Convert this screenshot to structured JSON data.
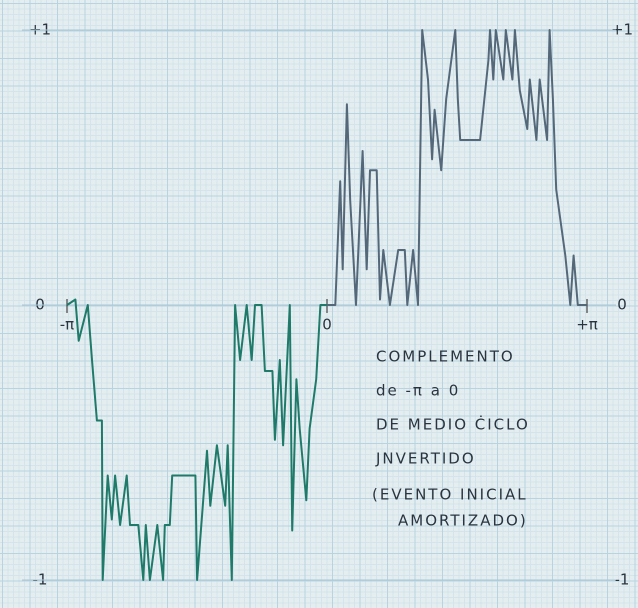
{
  "chart_data": {
    "type": "line",
    "xlim": [
      -3.1416,
      3.1416
    ],
    "ylim": [
      -1,
      1
    ],
    "xticks": [
      {
        "value": -3.1416,
        "label": "-π"
      },
      0,
      {
        "value": 3.1416,
        "label": "+π"
      }
    ],
    "yticks": [
      {
        "value": 1,
        "label": "+1"
      },
      0,
      -1
    ],
    "grid": true,
    "annotation": [
      "COMPLEMENTO",
      "de -π a 0",
      "DE MEDIO ĊICLO",
      "JNVERTIDO",
      "(EVENTO INICIAL",
      "AMORTIZADO)"
    ],
    "series": [
      {
        "color": "#1f7a6a",
        "x": [
          -3.14,
          -3.04,
          -3.0,
          -2.89,
          -2.84,
          -2.78,
          -2.72,
          -2.71,
          -2.65,
          -2.6,
          -2.56,
          -2.5,
          -2.42,
          -2.38,
          -2.28,
          -2.22,
          -2.19,
          -2.14,
          -2.05,
          -1.98,
          -1.96,
          -1.9,
          -1.87,
          -1.59,
          -1.57,
          -1.45,
          -1.41,
          -1.33,
          -1.23,
          -1.2,
          -1.15,
          -1.11,
          -1.05,
          -0.97,
          -0.91,
          -0.87,
          -0.79,
          -0.75,
          -0.66,
          -0.63,
          -0.57,
          -0.53,
          -0.45,
          -0.42,
          -0.37,
          -0.33,
          -0.25,
          -0.21,
          -0.13,
          -0.08,
          0
        ],
        "values": [
          0,
          0.02,
          -0.13,
          0,
          -0.2,
          -0.42,
          -0.42,
          -1,
          -0.62,
          -0.78,
          -0.62,
          -0.8,
          -0.62,
          -0.8,
          -0.8,
          -1,
          -0.8,
          -1,
          -0.8,
          -1,
          -0.8,
          -0.8,
          -0.62,
          -0.62,
          -1,
          -0.53,
          -0.73,
          -0.51,
          -0.73,
          -0.51,
          -1,
          0,
          -0.2,
          0,
          -0.2,
          0,
          0,
          -0.24,
          -0.24,
          -0.49,
          -0.2,
          -0.51,
          0,
          -0.82,
          -0.27,
          -0.45,
          -0.71,
          -0.45,
          -0.27,
          0,
          0
        ]
      },
      {
        "color": "#55687a",
        "x": [
          0,
          0.1,
          0.16,
          0.19,
          0.24,
          0.28,
          0.35,
          0.43,
          0.48,
          0.52,
          0.6,
          0.64,
          0.68,
          0.76,
          0.86,
          0.94,
          0.97,
          1.04,
          1.1,
          1.15,
          1.22,
          1.27,
          1.3,
          1.38,
          1.44,
          1.55,
          1.58,
          1.61,
          1.85,
          1.95,
          1.97,
          2.01,
          2.04,
          2.13,
          2.16,
          2.24,
          2.27,
          2.33,
          2.42,
          2.45,
          2.53,
          2.57,
          2.66,
          2.69,
          2.73,
          2.77,
          2.88,
          2.94,
          2.98,
          3.03,
          3.14
        ],
        "values": [
          0,
          0,
          0.45,
          0.13,
          0.73,
          0.38,
          0,
          0.56,
          0.13,
          0.49,
          0.49,
          0.02,
          0.2,
          0,
          0.2,
          0.2,
          0,
          0.2,
          0,
          1,
          0.82,
          0.53,
          0.71,
          0.49,
          0.75,
          1,
          0.75,
          0.6,
          0.6,
          0.89,
          1,
          0.82,
          1,
          0.82,
          1,
          0.82,
          1,
          0.78,
          0.64,
          0.82,
          0.6,
          0.82,
          0.6,
          1,
          0.75,
          0.42,
          0.18,
          0,
          0.18,
          0,
          0
        ]
      }
    ]
  }
}
